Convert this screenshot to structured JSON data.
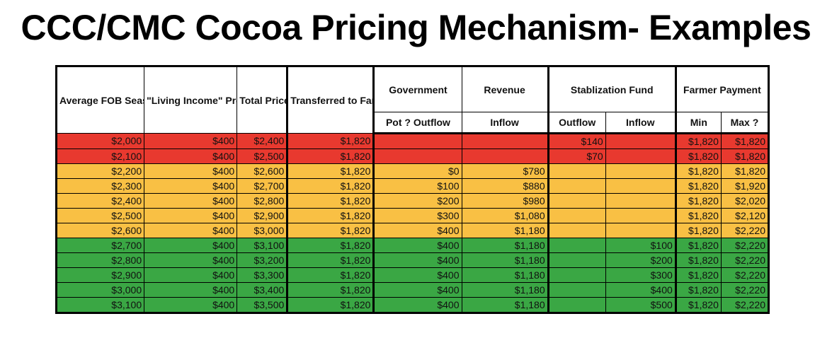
{
  "title": "CCC/CMC Cocoa Pricing Mechanism- Examples",
  "colors": {
    "red": "#e8392f",
    "orange": "#f9c044",
    "green": "#3aa744"
  },
  "headers": {
    "avg_fob": "Average FOB Season Price",
    "premium": "\"Living Income\" Premium",
    "total": "Total Price",
    "transferred": "Transferred to Farmer",
    "government": "Government",
    "revenue": "Revenue",
    "stabilization": "Stablization Fund",
    "farmer_payment": "Farmer Payment",
    "pot_outflow": "Pot ? Outflow",
    "rev_inflow": "Inflow",
    "stab_outflow": "Outflow",
    "stab_inflow": "Inflow",
    "min": "Min",
    "max": "Max ?"
  },
  "rows": [
    {
      "band": "red",
      "cells": [
        "$2,000",
        "$400",
        "$2,400",
        "$1,820",
        "",
        "",
        "$140",
        "",
        "$1,820",
        "$1,820"
      ]
    },
    {
      "band": "red",
      "cells": [
        "$2,100",
        "$400",
        "$2,500",
        "$1,820",
        "",
        "",
        "$70",
        "",
        "$1,820",
        "$1,820"
      ]
    },
    {
      "band": "orange",
      "cells": [
        "$2,200",
        "$400",
        "$2,600",
        "$1,820",
        "$0",
        "$780",
        "",
        "",
        "$1,820",
        "$1,820"
      ]
    },
    {
      "band": "orange",
      "cells": [
        "$2,300",
        "$400",
        "$2,700",
        "$1,820",
        "$100",
        "$880",
        "",
        "",
        "$1,820",
        "$1,920"
      ]
    },
    {
      "band": "orange",
      "cells": [
        "$2,400",
        "$400",
        "$2,800",
        "$1,820",
        "$200",
        "$980",
        "",
        "",
        "$1,820",
        "$2,020"
      ]
    },
    {
      "band": "orange",
      "cells": [
        "$2,500",
        "$400",
        "$2,900",
        "$1,820",
        "$300",
        "$1,080",
        "",
        "",
        "$1,820",
        "$2,120"
      ]
    },
    {
      "band": "orange",
      "cells": [
        "$2,600",
        "$400",
        "$3,000",
        "$1,820",
        "$400",
        "$1,180",
        "",
        "",
        "$1,820",
        "$2,220"
      ]
    },
    {
      "band": "green",
      "cells": [
        "$2,700",
        "$400",
        "$3,100",
        "$1,820",
        "$400",
        "$1,180",
        "",
        "$100",
        "$1,820",
        "$2,220"
      ]
    },
    {
      "band": "green",
      "cells": [
        "$2,800",
        "$400",
        "$3,200",
        "$1,820",
        "$400",
        "$1,180",
        "",
        "$200",
        "$1,820",
        "$2,220"
      ]
    },
    {
      "band": "green",
      "cells": [
        "$2,900",
        "$400",
        "$3,300",
        "$1,820",
        "$400",
        "$1,180",
        "",
        "$300",
        "$1,820",
        "$2,220"
      ]
    },
    {
      "band": "green",
      "cells": [
        "$3,000",
        "$400",
        "$3,400",
        "$1,820",
        "$400",
        "$1,180",
        "",
        "$400",
        "$1,820",
        "$2,220"
      ]
    },
    {
      "band": "green",
      "cells": [
        "$3,100",
        "$400",
        "$3,500",
        "$1,820",
        "$400",
        "$1,180",
        "",
        "$500",
        "$1,820",
        "$2,220"
      ]
    }
  ]
}
